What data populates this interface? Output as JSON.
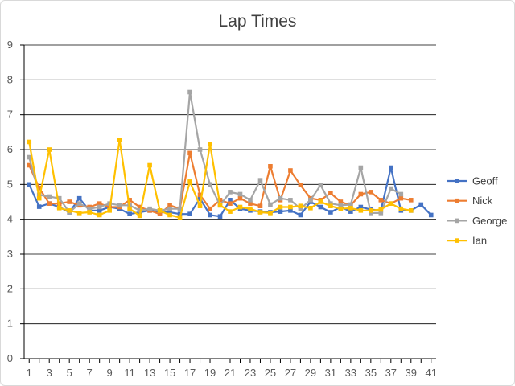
{
  "chart_data": {
    "type": "line",
    "title": "Lap Times",
    "xlabel": "",
    "ylabel": "",
    "ylim": [
      0,
      9
    ],
    "y_ticks": [
      0,
      1,
      2,
      3,
      4,
      5,
      6,
      7,
      8,
      9
    ],
    "x_range": [
      1,
      41
    ],
    "x_tick_labels": [
      1,
      3,
      5,
      7,
      9,
      11,
      13,
      15,
      17,
      19,
      21,
      23,
      25,
      27,
      29,
      31,
      33,
      35,
      37,
      39,
      41
    ],
    "grid": "horizontal",
    "legend_position": "right",
    "series": [
      {
        "name": "Geoff",
        "color": "#4472C4",
        "marker": "square",
        "values": [
          5.0,
          4.36,
          4.45,
          4.35,
          4.2,
          4.6,
          4.25,
          4.25,
          4.35,
          4.3,
          4.15,
          4.2,
          4.25,
          4.2,
          4.2,
          4.15,
          4.15,
          4.6,
          4.12,
          4.08,
          4.55,
          4.3,
          4.25,
          4.22,
          4.2,
          4.22,
          4.25,
          4.12,
          4.5,
          4.35,
          4.2,
          4.35,
          4.22,
          4.35,
          4.28,
          4.25,
          5.48,
          4.25,
          4.25,
          4.42,
          4.12
        ]
      },
      {
        "name": "Nick",
        "color": "#ED7D31",
        "marker": "square",
        "values": [
          5.55,
          4.9,
          4.45,
          4.45,
          4.5,
          4.4,
          4.35,
          4.45,
          4.35,
          4.35,
          4.55,
          4.35,
          4.25,
          4.15,
          4.4,
          4.3,
          5.9,
          4.7,
          4.3,
          4.55,
          4.45,
          4.6,
          4.45,
          4.38,
          5.52,
          4.55,
          5.4,
          4.98,
          4.6,
          4.55,
          4.75,
          4.5,
          4.4,
          4.72,
          4.78,
          4.55,
          4.45,
          4.6,
          4.55
        ]
      },
      {
        "name": "George",
        "color": "#A5A5A5",
        "marker": "square",
        "values": [
          5.78,
          4.7,
          4.65,
          4.6,
          4.2,
          4.45,
          4.3,
          4.35,
          4.45,
          4.4,
          4.4,
          4.25,
          4.3,
          4.25,
          4.3,
          4.3,
          7.65,
          6.0,
          5.0,
          4.4,
          4.78,
          4.72,
          4.55,
          5.12,
          4.42,
          4.6,
          4.55,
          4.3,
          4.55,
          4.98,
          4.45,
          4.4,
          4.42,
          5.48,
          4.18,
          4.18,
          4.88,
          4.72
        ]
      },
      {
        "name": "Ian",
        "color": "#FFC000",
        "marker": "square",
        "values": [
          6.22,
          4.6,
          6.0,
          4.32,
          4.25,
          4.18,
          4.2,
          4.12,
          4.25,
          6.28,
          4.3,
          4.1,
          5.55,
          4.25,
          4.12,
          4.05,
          5.08,
          4.38,
          6.15,
          4.4,
          4.22,
          4.35,
          4.3,
          4.2,
          4.18,
          4.35,
          4.35,
          4.38,
          4.32,
          4.5,
          4.38,
          4.3,
          4.32,
          4.25,
          4.25,
          4.28,
          4.45,
          4.3,
          4.25
        ]
      }
    ]
  }
}
